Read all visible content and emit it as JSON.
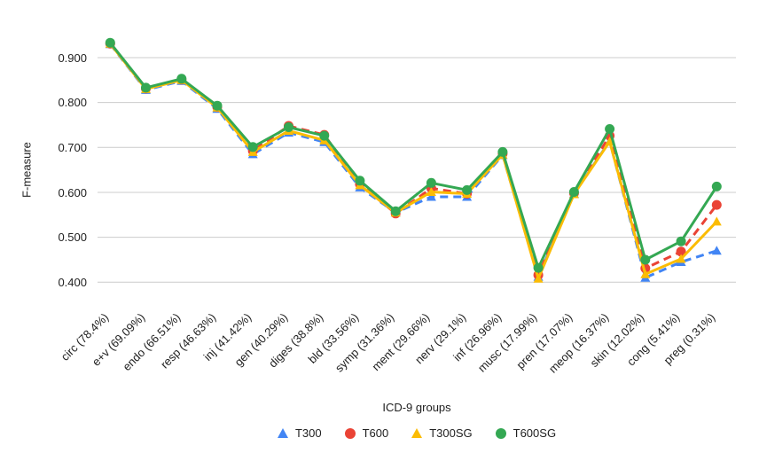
{
  "chart_data": {
    "type": "line",
    "title": "",
    "xlabel": "ICD-9 groups",
    "ylabel": "F-measure",
    "ylim": [
      0.4,
      0.9
    ],
    "grid": true,
    "grid_color": "#cccccc",
    "legend_position": "bottom",
    "y_ticks": [
      0.9,
      0.8,
      0.7,
      0.6,
      0.5,
      0.4
    ],
    "y_tick_labels": [
      "0.900",
      "0.800",
      "0.700",
      "0.600",
      "0.500",
      "0.400"
    ],
    "categories": [
      "circ (78.4%)",
      "e+v (69.09%)",
      "endo (66.51%)",
      "resp (46.63%)",
      "inj (41.42%)",
      "gen (40.29%)",
      "diges (38.8%)",
      "bld (33.56%)",
      "symp (31.36%)",
      "ment (29.66%)",
      "nerv (29.1%)",
      "inf (26.96%)",
      "musc (17.99%)",
      "pren (17.07%)",
      "meop (16.37%)",
      "skin (12.02%)",
      "cong (5.41%)",
      "preg (0.31%)"
    ],
    "series": [
      {
        "name": "T300",
        "color": "#4285F4",
        "line_style": "dashed",
        "marker": "triangle",
        "values": [
          0.93,
          0.828,
          0.848,
          0.786,
          0.685,
          0.733,
          0.712,
          0.611,
          0.555,
          0.59,
          0.59,
          0.683,
          0.412,
          0.597,
          0.714,
          0.41,
          0.445,
          0.47
        ]
      },
      {
        "name": "T600",
        "color": "#EA4335",
        "line_style": "dashed",
        "marker": "circle",
        "values": [
          0.931,
          0.831,
          0.851,
          0.79,
          0.692,
          0.748,
          0.728,
          0.618,
          0.553,
          0.609,
          0.597,
          0.686,
          0.416,
          0.598,
          0.726,
          0.431,
          0.468,
          0.572
        ]
      },
      {
        "name": "T300SG",
        "color": "#FBBC04",
        "line_style": "solid",
        "marker": "triangle",
        "values": [
          0.931,
          0.83,
          0.85,
          0.789,
          0.69,
          0.737,
          0.716,
          0.616,
          0.555,
          0.601,
          0.597,
          0.684,
          0.408,
          0.596,
          0.713,
          0.418,
          0.452,
          0.535
        ]
      },
      {
        "name": "T600SG",
        "color": "#34A853",
        "line_style": "solid",
        "marker": "circle",
        "values": [
          0.933,
          0.833,
          0.853,
          0.793,
          0.701,
          0.745,
          0.726,
          0.626,
          0.558,
          0.621,
          0.605,
          0.69,
          0.432,
          0.601,
          0.741,
          0.45,
          0.491,
          0.613
        ]
      }
    ]
  }
}
